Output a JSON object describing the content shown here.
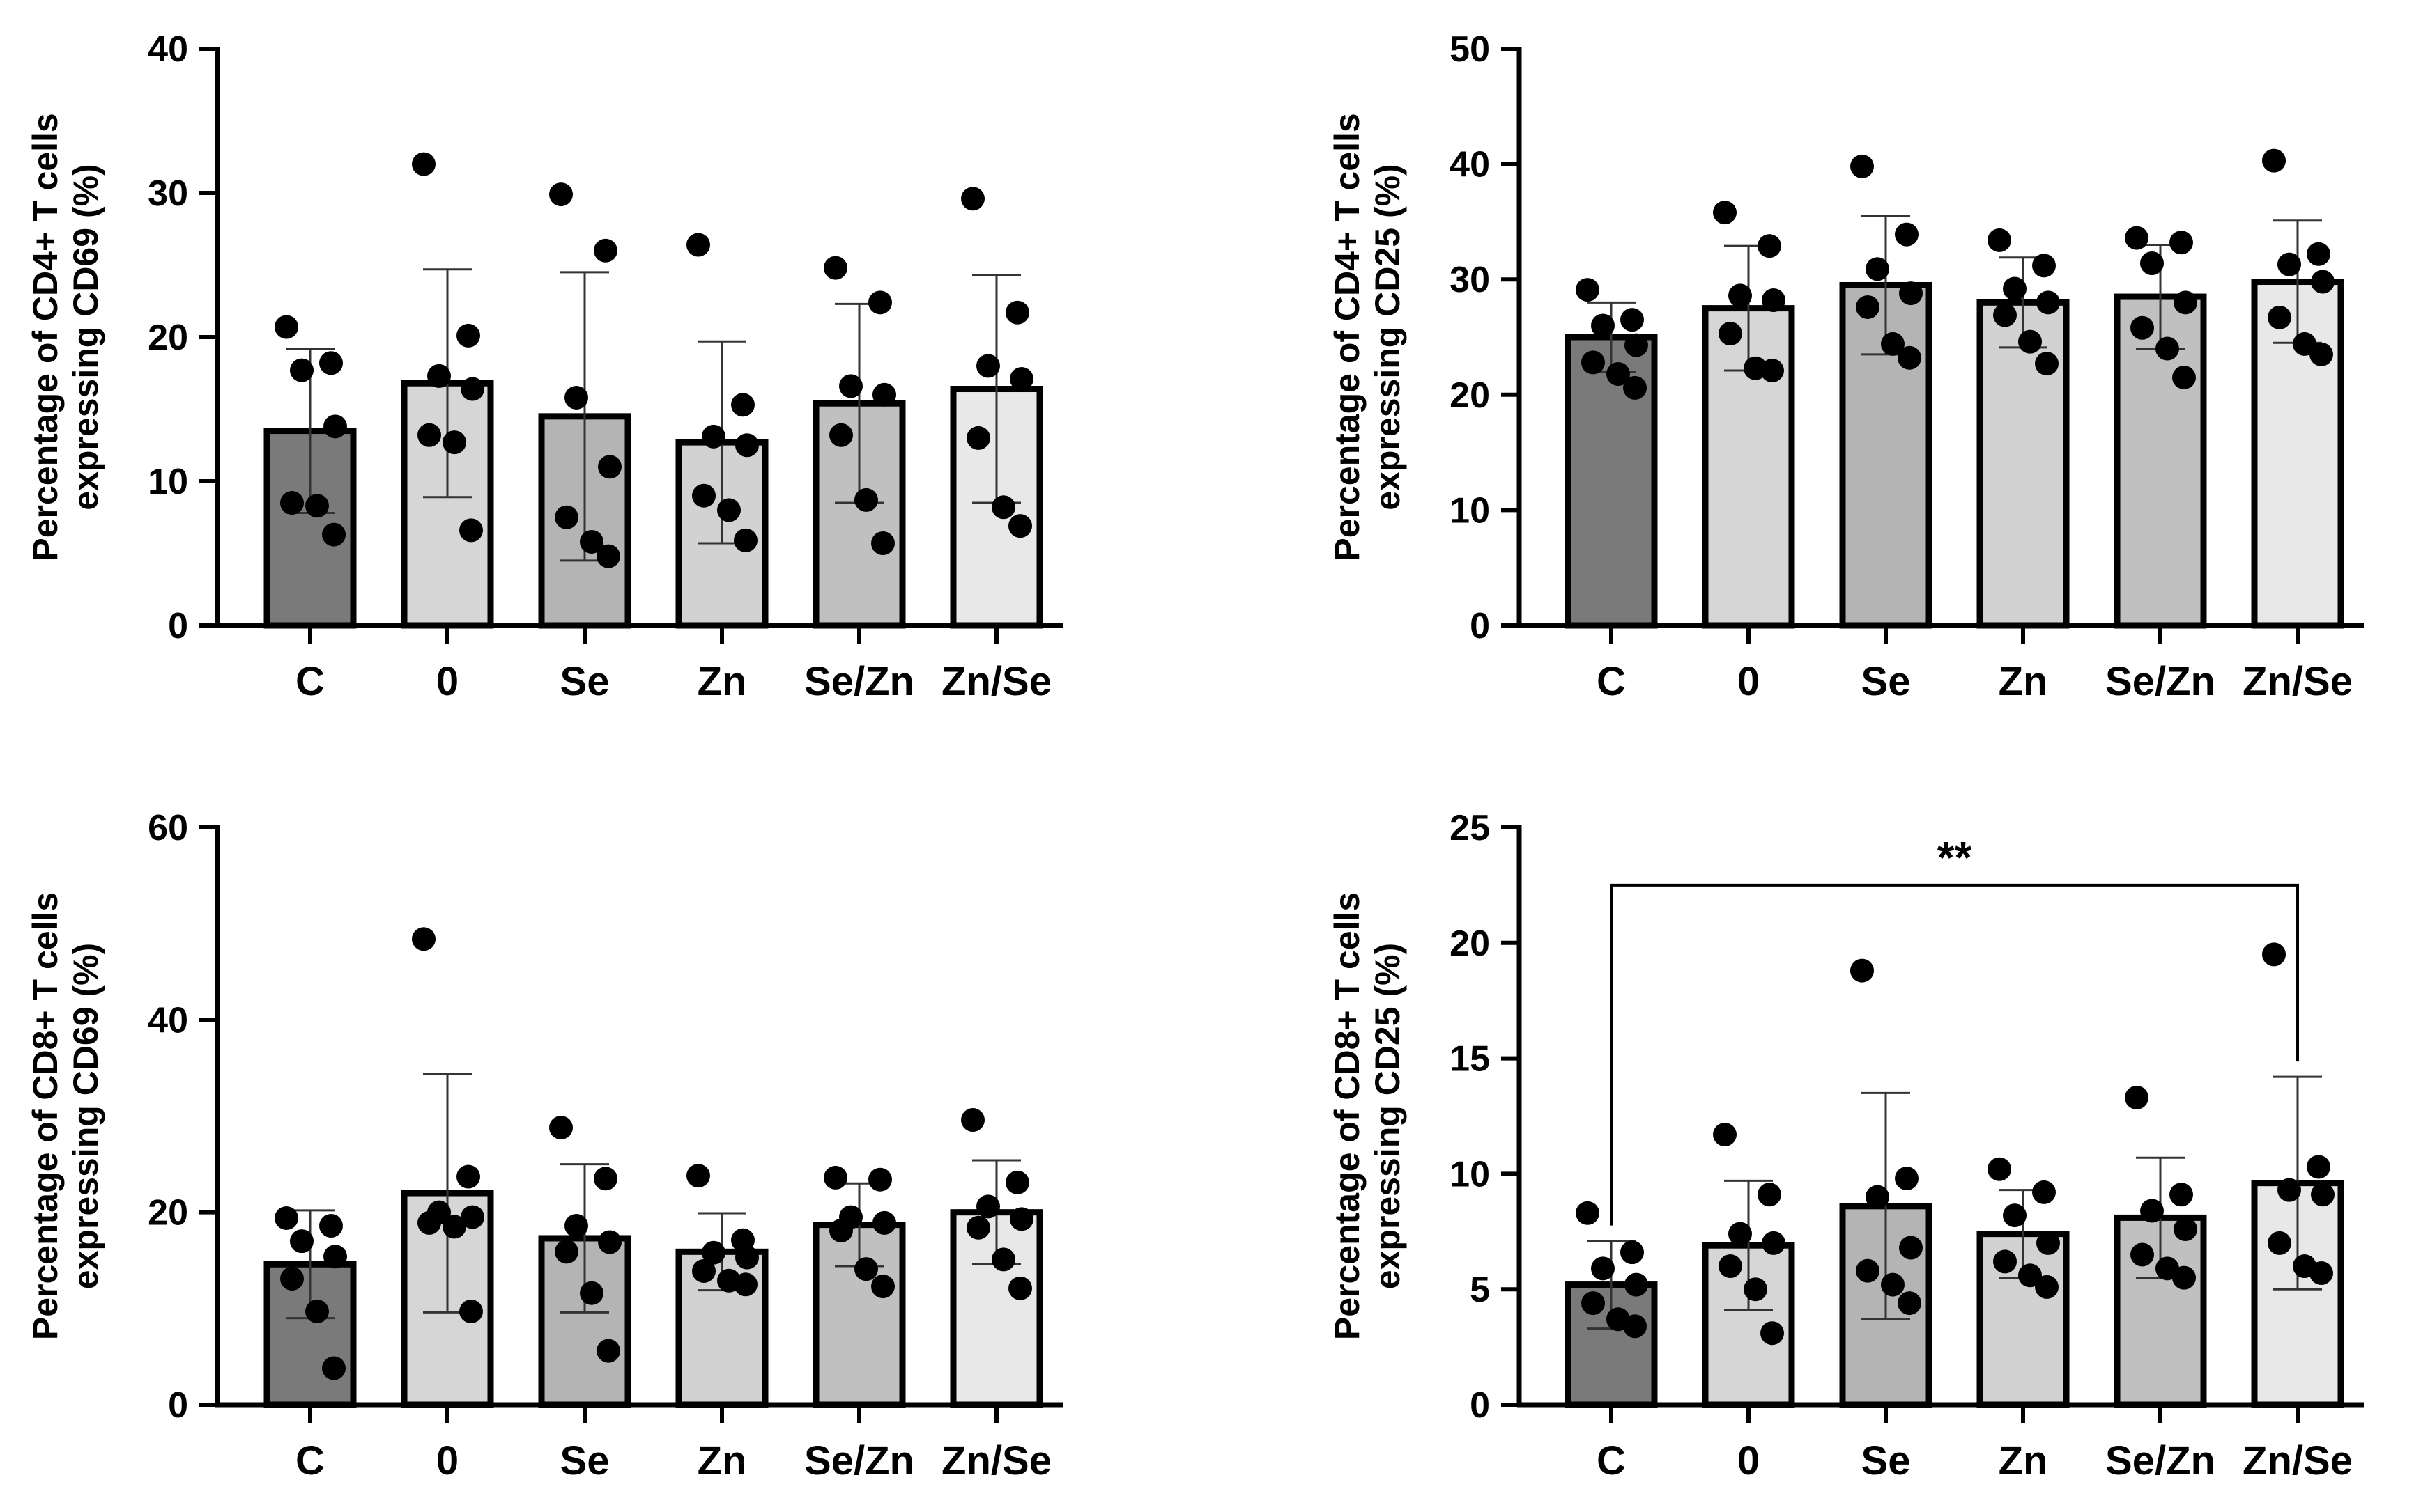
{
  "figure": {
    "categories": [
      "C",
      "0",
      "Se",
      "Zn",
      "Se/Zn",
      "Zn/Se"
    ],
    "bar_colors": [
      "#7a7a7a",
      "#d6d6d6",
      "#b4b4b4",
      "#d2d2d2",
      "#c0c0c0",
      "#e8e8e8"
    ]
  },
  "chart_data": [
    {
      "type": "bar",
      "id": "cd4-cd69",
      "ylabel_lines": [
        "Percentage of CD4+ T cells",
        "expressing CD69 (%)"
      ],
      "ylim": [
        0,
        40
      ],
      "yticks": [
        0,
        10,
        20,
        30,
        40
      ],
      "categories": [
        "C",
        "0",
        "Se",
        "Zn",
        "Se/Zn",
        "Zn/Se"
      ],
      "means": [
        13.5,
        16.8,
        14.5,
        12.7,
        15.4,
        16.4
      ],
      "sd": [
        5.7,
        7.9,
        10.0,
        7.0,
        6.9,
        7.9
      ],
      "points": [
        [
          20.7,
          18.2,
          17.7,
          13.8,
          8.5,
          8.3,
          6.3
        ],
        [
          32.0,
          20.1,
          17.3,
          16.4,
          13.2,
          12.7,
          6.6
        ],
        [
          29.9,
          26.0,
          15.8,
          11.0,
          7.5,
          5.8,
          4.8
        ],
        [
          26.4,
          15.3,
          13.1,
          12.5,
          9.0,
          8.0,
          5.9
        ],
        [
          24.8,
          22.4,
          16.6,
          16.0,
          13.2,
          8.7,
          5.7
        ],
        [
          29.6,
          21.7,
          18.0,
          17.1,
          13.0,
          8.2,
          6.9
        ]
      ],
      "significance": null
    },
    {
      "type": "bar",
      "id": "cd4-cd25",
      "ylabel_lines": [
        "Percentage of CD4+ T cells",
        "expressing CD25 (%)"
      ],
      "ylim": [
        0,
        50
      ],
      "yticks": [
        0,
        10,
        20,
        30,
        40,
        50
      ],
      "categories": [
        "C",
        "0",
        "Se",
        "Zn",
        "Se/Zn",
        "Zn/Se"
      ],
      "means": [
        25.0,
        27.5,
        29.5,
        28.0,
        28.5,
        29.8
      ],
      "sd": [
        3.0,
        5.4,
        6.0,
        3.9,
        4.5,
        5.3
      ],
      "points": [
        [
          29.1,
          26.5,
          26.0,
          24.3,
          22.8,
          21.8,
          20.6
        ],
        [
          35.8,
          32.9,
          28.6,
          28.2,
          25.3,
          22.3,
          22.1
        ],
        [
          39.8,
          33.9,
          30.9,
          28.8,
          27.6,
          24.4,
          23.2
        ],
        [
          33.4,
          31.2,
          29.2,
          28.0,
          26.9,
          24.6,
          22.7
        ],
        [
          33.6,
          33.2,
          31.4,
          28.0,
          25.8,
          24.0,
          21.5
        ],
        [
          40.3,
          32.2,
          31.3,
          29.8,
          26.7,
          24.4,
          23.5
        ]
      ],
      "significance": null
    },
    {
      "type": "bar",
      "id": "cd8-cd69",
      "ylabel_lines": [
        "Percentage of CD8+ T cells",
        "expressing CD69 (%)"
      ],
      "ylim": [
        0,
        60
      ],
      "yticks": [
        0,
        20,
        40,
        60
      ],
      "categories": [
        "C",
        "0",
        "Se",
        "Zn",
        "Se/Zn",
        "Zn/Se"
      ],
      "means": [
        14.6,
        22.0,
        17.3,
        15.9,
        18.7,
        20.0
      ],
      "sd": [
        5.6,
        12.4,
        7.7,
        4.0,
        4.3,
        5.4
      ],
      "points": [
        [
          19.4,
          18.6,
          17.0,
          15.4,
          13.1,
          9.7,
          3.8
        ],
        [
          48.4,
          23.7,
          20.0,
          19.5,
          18.9,
          18.5,
          9.7
        ],
        [
          28.8,
          23.5,
          18.6,
          16.9,
          15.9,
          11.6,
          5.6
        ],
        [
          23.8,
          17.1,
          15.8,
          15.3,
          13.9,
          12.9,
          12.5
        ],
        [
          23.6,
          23.4,
          19.5,
          18.9,
          18.1,
          14.1,
          12.3
        ],
        [
          29.6,
          23.1,
          20.6,
          19.3,
          18.4,
          15.1,
          12.1
        ]
      ],
      "significance": null
    },
    {
      "type": "bar",
      "id": "cd8-cd25",
      "ylabel_lines": [
        "Percentage of CD8+ T cells",
        "expressing CD25 (%)"
      ],
      "ylim": [
        0,
        25
      ],
      "yticks": [
        0,
        5,
        10,
        15,
        20,
        25
      ],
      "categories": [
        "C",
        "0",
        "Se",
        "Zn",
        "Se/Zn",
        "Zn/Se"
      ],
      "means": [
        5.2,
        6.9,
        8.6,
        7.4,
        8.1,
        9.6
      ],
      "sd": [
        1.9,
        2.8,
        4.9,
        1.9,
        2.6,
        4.6
      ],
      "points": [
        [
          8.3,
          6.6,
          5.9,
          5.2,
          4.4,
          3.7,
          3.4
        ],
        [
          11.7,
          9.1,
          7.4,
          7.0,
          6.0,
          5.0,
          3.1
        ],
        [
          18.8,
          9.8,
          9.0,
          6.8,
          5.8,
          5.2,
          4.4
        ],
        [
          10.2,
          9.2,
          8.2,
          7.0,
          6.2,
          5.6,
          5.1
        ],
        [
          13.3,
          9.1,
          8.4,
          7.6,
          6.5,
          5.9,
          5.5
        ],
        [
          19.5,
          10.3,
          9.3,
          9.1,
          7.0,
          6.0,
          5.7
        ]
      ],
      "significance": {
        "from": "C",
        "to": "Zn/Se",
        "label": "**",
        "y": 22.5
      }
    }
  ]
}
